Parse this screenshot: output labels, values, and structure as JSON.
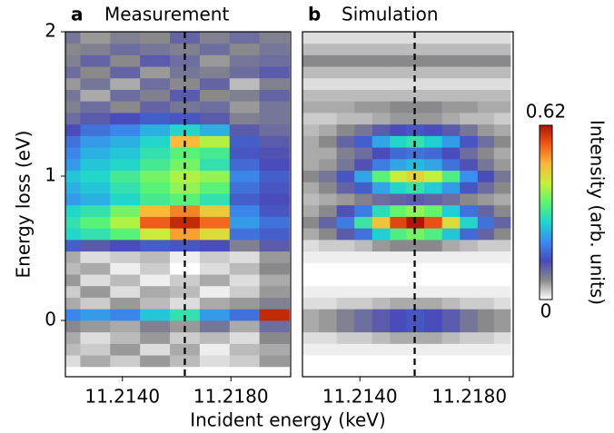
{
  "chart_data": [
    {
      "type": "heatmap",
      "panel_label": "a",
      "title": "Measurement",
      "ylabel": "Energy loss (eV)",
      "xlim": [
        11.2119,
        11.2202
      ],
      "ylim": [
        -0.39,
        2
      ],
      "xticks": [
        {
          "value": 11.214,
          "label": "11.2140"
        },
        {
          "value": 11.218,
          "label": "11.2180"
        }
      ],
      "yticks": [
        0,
        1,
        2
      ],
      "vline": 11.2163,
      "x": [
        11.2119,
        11.213,
        11.2141,
        11.2152,
        11.2163,
        11.2174,
        11.2185,
        11.2196
      ],
      "y": [
        -0.36,
        -0.28,
        -0.2,
        -0.12,
        -0.04,
        0.04,
        0.12,
        0.2,
        0.28,
        0.36,
        0.44,
        0.52,
        0.6,
        0.68,
        0.76,
        0.84,
        0.92,
        1.0,
        1.08,
        1.16,
        1.24,
        1.32,
        1.4,
        1.48,
        1.56,
        1.64,
        1.72,
        1.8,
        1.88,
        1.96
      ],
      "values": [
        [
          null,
          null,
          null,
          null,
          null,
          null,
          null,
          null
        ],
        [
          0.02,
          0.05,
          0.03,
          0.06,
          0.04,
          0.02,
          0.03,
          0.06
        ],
        [
          0.04,
          0.03,
          0.06,
          0.02,
          0.05,
          0.01,
          0.04,
          0.05
        ],
        [
          0.05,
          0.02,
          0.04,
          0.06,
          0.03,
          0.04,
          0.02,
          0.07
        ],
        [
          0.07,
          0.06,
          0.05,
          0.08,
          0.06,
          0.09,
          0.05,
          0.1
        ],
        [
          0.2,
          0.22,
          0.2,
          0.26,
          0.3,
          0.22,
          0.18,
          0.6
        ],
        [
          0.05,
          0.03,
          0.06,
          0.04,
          0.02,
          0.05,
          0.06,
          0.08
        ],
        [
          0.03,
          0.06,
          0.02,
          0.05,
          0.04,
          0.01,
          0.03,
          0.06
        ],
        [
          0.06,
          0.02,
          0.04,
          0.01,
          0.03,
          0.05,
          0.02,
          0.05
        ],
        [
          0.04,
          0.05,
          0.01,
          0.03,
          0.0,
          0.02,
          0.04,
          0.07
        ],
        [
          0.05,
          0.02,
          0.03,
          0.04,
          0.01,
          0.03,
          0.02,
          0.06
        ],
        [
          0.16,
          0.12,
          0.14,
          0.16,
          0.15,
          0.14,
          0.08,
          0.12
        ],
        [
          0.28,
          0.3,
          0.34,
          0.42,
          0.5,
          0.44,
          0.18,
          0.16
        ],
        [
          0.3,
          0.34,
          0.4,
          0.55,
          0.6,
          0.54,
          0.22,
          0.18
        ],
        [
          0.28,
          0.3,
          0.36,
          0.48,
          0.52,
          0.46,
          0.2,
          0.15
        ],
        [
          0.22,
          0.24,
          0.28,
          0.32,
          0.34,
          0.3,
          0.16,
          0.14
        ],
        [
          0.24,
          0.26,
          0.3,
          0.34,
          0.38,
          0.34,
          0.18,
          0.15
        ],
        [
          0.26,
          0.28,
          0.32,
          0.36,
          0.4,
          0.38,
          0.2,
          0.16
        ],
        [
          0.22,
          0.26,
          0.28,
          0.32,
          0.36,
          0.3,
          0.17,
          0.14
        ],
        [
          0.2,
          0.24,
          0.26,
          0.3,
          0.34,
          0.32,
          0.15,
          0.13
        ],
        [
          0.18,
          0.22,
          0.24,
          0.28,
          0.48,
          0.4,
          0.16,
          0.12
        ],
        [
          0.14,
          0.18,
          0.2,
          0.24,
          0.28,
          0.24,
          0.12,
          0.1
        ],
        [
          0.1,
          0.12,
          0.14,
          0.16,
          0.15,
          0.12,
          0.08,
          0.09
        ],
        [
          0.08,
          0.1,
          0.07,
          0.11,
          0.09,
          0.1,
          0.06,
          0.09
        ],
        [
          0.09,
          0.05,
          0.1,
          0.08,
          0.12,
          0.07,
          0.08,
          0.11
        ],
        [
          0.06,
          0.09,
          0.05,
          0.1,
          0.07,
          0.11,
          0.04,
          0.08
        ],
        [
          0.1,
          0.07,
          0.11,
          0.06,
          0.09,
          0.08,
          0.1,
          0.12
        ],
        [
          0.08,
          0.11,
          0.07,
          0.12,
          0.1,
          0.06,
          0.09,
          0.1
        ],
        [
          0.07,
          0.08,
          0.1,
          0.09,
          0.08,
          0.1,
          0.07,
          0.09
        ],
        [
          0.09,
          0.06,
          0.08,
          0.07,
          0.11,
          0.08,
          0.1,
          0.08
        ]
      ]
    },
    {
      "type": "heatmap",
      "panel_label": "b",
      "title": "Simulation",
      "xlim": [
        11.2119,
        11.2196
      ],
      "ylim": [
        -0.39,
        2
      ],
      "xticks": [
        {
          "value": 11.214,
          "label": "11.2140"
        },
        {
          "value": 11.218,
          "label": "11.2180"
        }
      ],
      "vline": 11.216,
      "x": [
        11.2122,
        11.2128,
        11.2135,
        11.2141,
        11.2148,
        11.2154,
        11.216,
        11.2167,
        11.2173,
        11.218,
        11.2186,
        11.2192
      ],
      "y": [
        -0.36,
        -0.28,
        -0.2,
        -0.12,
        -0.04,
        0.04,
        0.12,
        0.2,
        0.28,
        0.36,
        0.44,
        0.52,
        0.6,
        0.68,
        0.76,
        0.84,
        0.92,
        1.0,
        1.08,
        1.16,
        1.24,
        1.32,
        1.4,
        1.48,
        1.56,
        1.64,
        1.72,
        1.8,
        1.88,
        1.96
      ],
      "values": [
        [
          0,
          0,
          0,
          0,
          0,
          0,
          0,
          0,
          0,
          0,
          0,
          0
        ],
        [
          0,
          0,
          0,
          0,
          0,
          0,
          0,
          0,
          0,
          0,
          0,
          0
        ],
        [
          0.01,
          0.01,
          0.01,
          0.01,
          0.01,
          0.01,
          0.01,
          0.01,
          0.01,
          0.01,
          0.01,
          0.01
        ],
        [
          0.02,
          0.02,
          0.03,
          0.03,
          0.04,
          0.05,
          0.05,
          0.05,
          0.04,
          0.03,
          0.03,
          0.02
        ],
        [
          0.05,
          0.06,
          0.08,
          0.1,
          0.12,
          0.14,
          0.15,
          0.14,
          0.12,
          0.09,
          0.07,
          0.06
        ],
        [
          0.05,
          0.06,
          0.08,
          0.1,
          0.12,
          0.14,
          0.15,
          0.14,
          0.12,
          0.09,
          0.07,
          0.06
        ],
        [
          0.02,
          0.02,
          0.03,
          0.03,
          0.04,
          0.05,
          0.05,
          0.05,
          0.04,
          0.03,
          0.03,
          0.02
        ],
        [
          0.01,
          0.01,
          0.01,
          0.01,
          0.01,
          0.01,
          0.01,
          0.01,
          0.01,
          0.01,
          0.01,
          0.01
        ],
        [
          0,
          0,
          0,
          0,
          0,
          0,
          0,
          0,
          0,
          0,
          0,
          0
        ],
        [
          0,
          0,
          0,
          0,
          0,
          0,
          0,
          0,
          0,
          0,
          0,
          0
        ],
        [
          0.01,
          0.01,
          0.01,
          0.01,
          0.01,
          0.01,
          0.01,
          0.01,
          0.01,
          0.01,
          0.01,
          0.01
        ],
        [
          0.02,
          0.03,
          0.03,
          0.04,
          0.06,
          0.07,
          0.07,
          0.07,
          0.05,
          0.04,
          0.03,
          0.03
        ],
        [
          0.05,
          0.07,
          0.12,
          0.18,
          0.27,
          0.33,
          0.36,
          0.33,
          0.26,
          0.17,
          0.11,
          0.07
        ],
        [
          0.07,
          0.11,
          0.19,
          0.31,
          0.47,
          0.57,
          0.62,
          0.56,
          0.44,
          0.28,
          0.18,
          0.11
        ],
        [
          0.05,
          0.07,
          0.13,
          0.19,
          0.29,
          0.35,
          0.38,
          0.35,
          0.27,
          0.18,
          0.11,
          0.07
        ],
        [
          0.04,
          0.05,
          0.06,
          0.08,
          0.1,
          0.11,
          0.12,
          0.11,
          0.1,
          0.07,
          0.06,
          0.05
        ],
        [
          0.05,
          0.07,
          0.11,
          0.16,
          0.23,
          0.28,
          0.3,
          0.27,
          0.22,
          0.15,
          0.1,
          0.07
        ],
        [
          0.07,
          0.09,
          0.15,
          0.23,
          0.34,
          0.42,
          0.45,
          0.41,
          0.33,
          0.21,
          0.14,
          0.09
        ],
        [
          0.05,
          0.06,
          0.09,
          0.13,
          0.19,
          0.23,
          0.25,
          0.23,
          0.18,
          0.13,
          0.09,
          0.06
        ],
        [
          0.05,
          0.05,
          0.08,
          0.1,
          0.14,
          0.17,
          0.18,
          0.17,
          0.14,
          0.1,
          0.07,
          0.05
        ],
        [
          0.05,
          0.07,
          0.11,
          0.16,
          0.23,
          0.28,
          0.3,
          0.27,
          0.22,
          0.15,
          0.1,
          0.07
        ],
        [
          0.04,
          0.05,
          0.07,
          0.09,
          0.12,
          0.14,
          0.15,
          0.14,
          0.12,
          0.09,
          0.06,
          0.05
        ],
        [
          0.03,
          0.03,
          0.04,
          0.04,
          0.05,
          0.06,
          0.06,
          0.06,
          0.05,
          0.04,
          0.04,
          0.03
        ],
        [
          0.05,
          0.05,
          0.05,
          0.06,
          0.06,
          0.07,
          0.07,
          0.07,
          0.06,
          0.06,
          0.05,
          0.05
        ],
        [
          0.04,
          0.04,
          0.04,
          0.04,
          0.04,
          0.04,
          0.04,
          0.04,
          0.04,
          0.04,
          0.04,
          0.04
        ],
        [
          0.02,
          0.02,
          0.02,
          0.02,
          0.02,
          0.02,
          0.02,
          0.02,
          0.02,
          0.02,
          0.02,
          0.02
        ],
        [
          0.04,
          0.04,
          0.04,
          0.04,
          0.04,
          0.04,
          0.04,
          0.04,
          0.04,
          0.04,
          0.04,
          0.04
        ],
        [
          0.07,
          0.07,
          0.07,
          0.07,
          0.07,
          0.07,
          0.07,
          0.07,
          0.07,
          0.07,
          0.07,
          0.07
        ],
        [
          0.04,
          0.04,
          0.04,
          0.04,
          0.04,
          0.04,
          0.04,
          0.04,
          0.04,
          0.04,
          0.04,
          0.04
        ],
        [
          0.02,
          0.02,
          0.02,
          0.02,
          0.02,
          0.02,
          0.02,
          0.02,
          0.02,
          0.02,
          0.02,
          0.02
        ]
      ]
    }
  ],
  "xlabel": "Incident energy (keV)",
  "colorbar": {
    "label": "Intensity (arb. units)",
    "clim": [
      0,
      0.62
    ],
    "ticks": [
      0,
      0.62
    ],
    "colormap": [
      "#ffffff",
      "#8a8a8a",
      "#4a4ab8",
      "#3a8cf0",
      "#1ed5d0",
      "#5cf470",
      "#c6f03a",
      "#fbb83a",
      "#f05a18",
      "#b01602"
    ]
  }
}
